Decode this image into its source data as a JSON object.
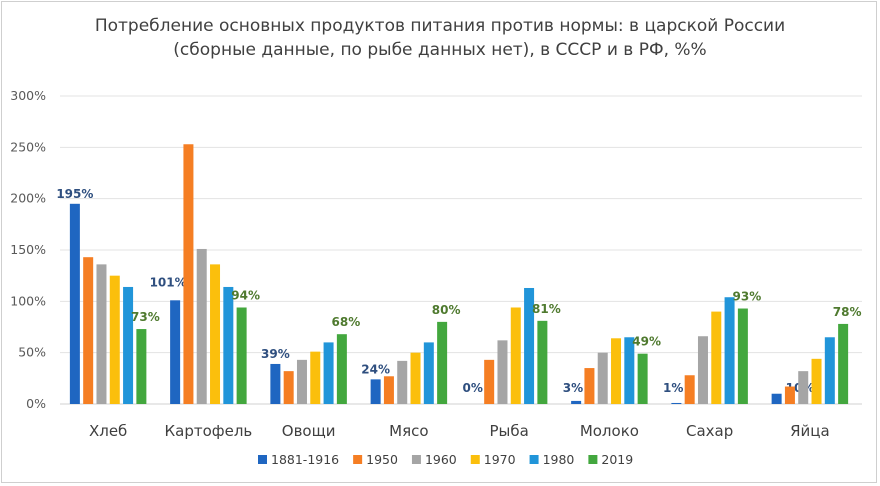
{
  "chart_data": {
    "type": "bar",
    "title": "Потребление основных продуктов питания против нормы: в царской России (сборные данные, по рыбе данных нет), в СССР и в РФ, %%",
    "title_lines": [
      "Потребление основных продуктов питания против нормы: в царской России",
      "(сборные данные, по рыбе данных нет), в СССР и в РФ, %%"
    ],
    "xlabel": "",
    "ylabel": "",
    "ylim": [
      0,
      300
    ],
    "yticks": [
      "0%",
      "50%",
      "100%",
      "150%",
      "200%",
      "250%",
      "300%"
    ],
    "grid": true,
    "legend_position": "bottom",
    "categories": [
      "Хлеб",
      "Картофель",
      "Овощи",
      "Мясо",
      "Рыба",
      "Молоко",
      "Сахар",
      "Яйца"
    ],
    "series": [
      {
        "name": "1881-1916",
        "color": "#1f66c1",
        "values": [
          195,
          101,
          39,
          24,
          0,
          3,
          1,
          10
        ],
        "labels": [
          "195%",
          "101%",
          "39%",
          "24%",
          "0%",
          "3%",
          "1%",
          "10%"
        ],
        "label_color": "#2f4f7f"
      },
      {
        "name": "1950",
        "color": "#f57e23",
        "values": [
          143,
          253,
          32,
          27,
          43,
          35,
          28,
          17
        ]
      },
      {
        "name": "1960",
        "color": "#a5a5a5",
        "values": [
          136,
          151,
          43,
          42,
          62,
          50,
          66,
          32
        ]
      },
      {
        "name": "1970",
        "color": "#fbbf0c",
        "values": [
          125,
          136,
          51,
          50,
          94,
          64,
          90,
          44
        ]
      },
      {
        "name": "1980",
        "color": "#2195d9",
        "values": [
          114,
          114,
          60,
          60,
          113,
          65,
          104,
          65
        ]
      },
      {
        "name": "2019",
        "color": "#43a73e",
        "values": [
          73,
          94,
          68,
          80,
          81,
          49,
          93,
          78
        ],
        "labels": [
          "73%",
          "94%",
          "68%",
          "80%",
          "81%",
          "49%",
          "93%",
          "78%"
        ],
        "label_color": "#4f7a2f"
      }
    ]
  }
}
